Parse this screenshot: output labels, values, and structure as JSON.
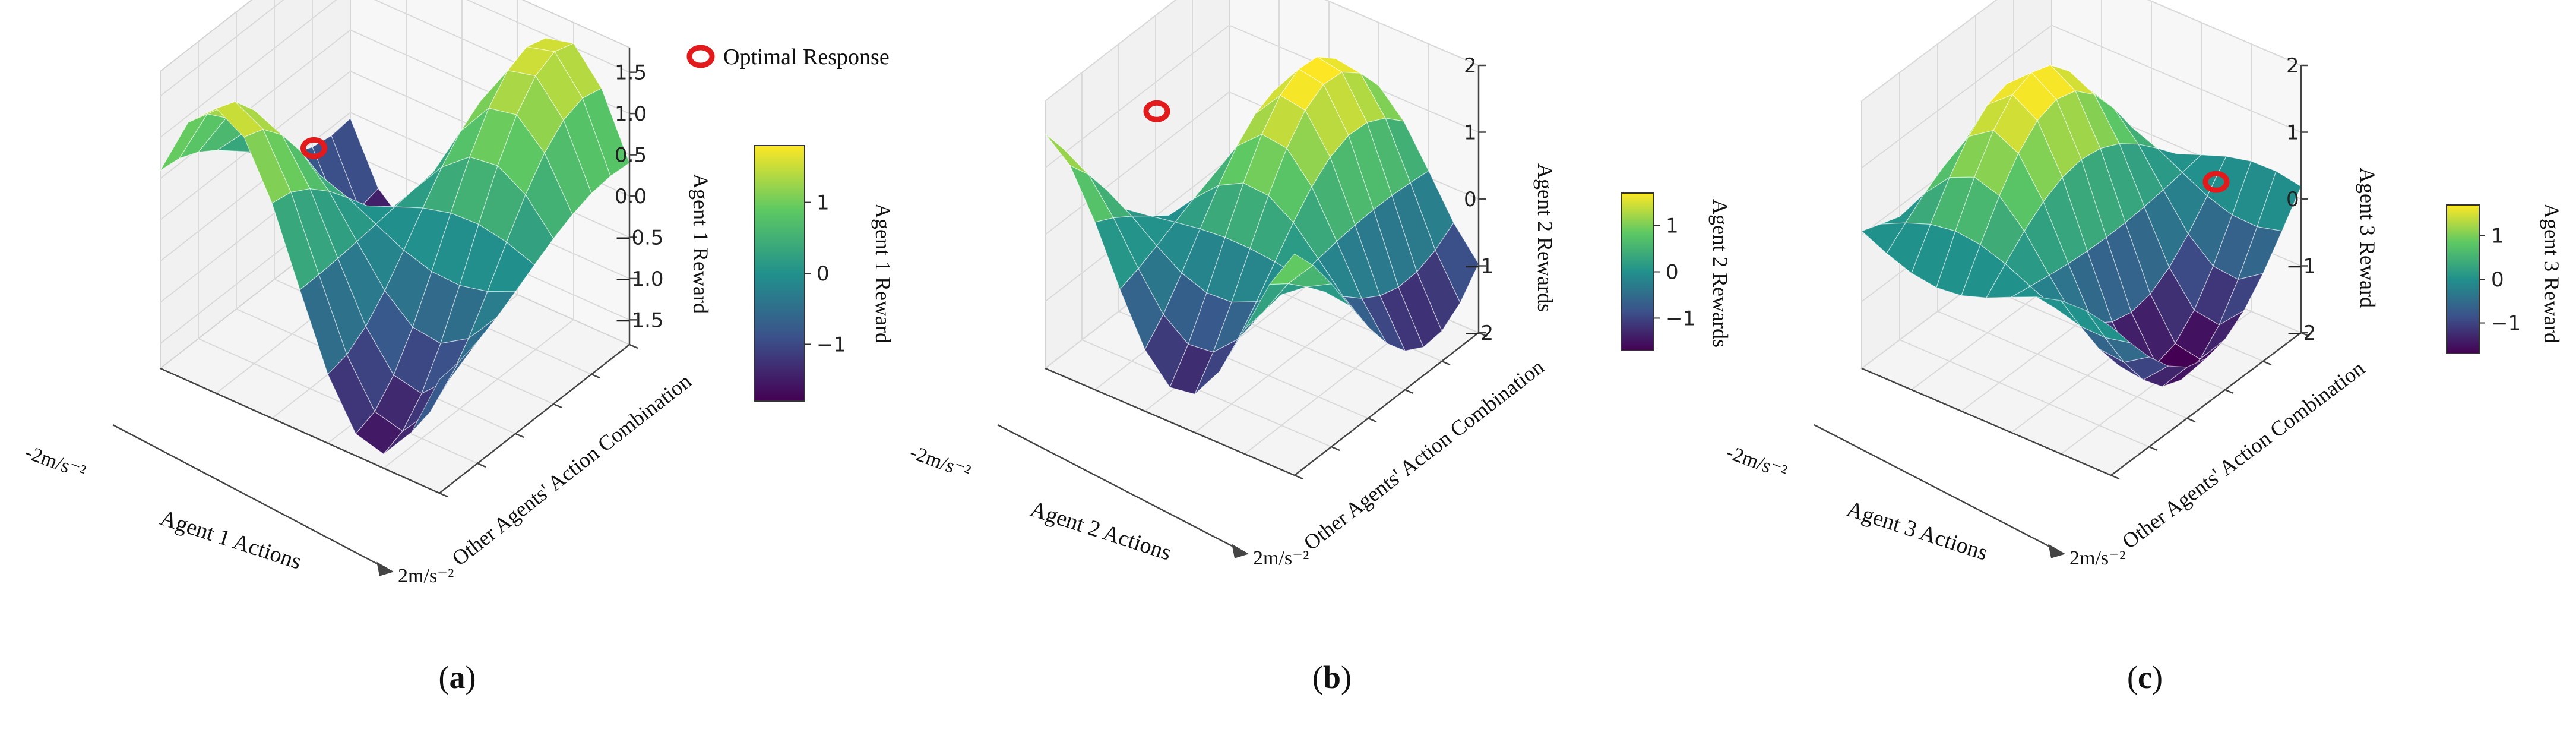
{
  "legend": {
    "label": "Optimal Response",
    "marker_color": "#e31a1c"
  },
  "colormap": [
    "#440154",
    "#3b528b",
    "#21918c",
    "#5ec962",
    "#fde725"
  ],
  "chart_data": [
    {
      "type": "surface",
      "panel_label": "(a)",
      "panel_letter": "a",
      "xlabel": "Agent 1 Actions",
      "ylabel": "Other Agents' Action Combination",
      "zlabel": "Agent 1 Reward",
      "x_range_labels": [
        "-2m/s⁻²",
        "2m/s⁻²"
      ],
      "zlim": [
        -1.8,
        1.8
      ],
      "zticks": [
        "1.5",
        "1.0",
        "0.5",
        "0.0",
        "−0.5",
        "−1.0",
        "−1.5"
      ],
      "zticks_values": [
        1.5,
        1.0,
        0.5,
        0.0,
        -0.5,
        -1.0,
        -1.5
      ],
      "colorbar": {
        "label": "Agent 1 Reward",
        "range": [
          -1.8,
          1.8
        ],
        "ticks": [
          "1",
          "0",
          "−1"
        ],
        "ticks_values": [
          1,
          0,
          -1
        ]
      },
      "surface": {
        "phase_x": 0.0,
        "phase_y": 0.0
      },
      "optimal_response": {
        "x": 0.55,
        "y": 0.0,
        "z": 1.7
      }
    },
    {
      "type": "surface",
      "panel_label": "(b)",
      "panel_letter": "b",
      "xlabel": "Agent 2 Actions",
      "ylabel": "Other Agents' Action Combination",
      "zlabel": "Agent 2 Rewards",
      "x_range_labels": [
        "-2m/s⁻²",
        "2m/s⁻²"
      ],
      "zlim": [
        -2,
        2
      ],
      "zticks": [
        "2",
        "1",
        "0",
        "−1",
        "−2"
      ],
      "zticks_values": [
        2,
        1,
        0,
        -1,
        -2
      ],
      "colorbar": {
        "label": "Agent 2 Rewards",
        "range": [
          -1.7,
          1.7
        ],
        "ticks": [
          "1",
          "0",
          "−1"
        ],
        "ticks_values": [
          1,
          0,
          -1
        ]
      },
      "surface": {
        "phase_x": 1.3,
        "phase_y": 0.6
      },
      "optimal_response": {
        "x": 0.3,
        "y": 0.2,
        "z": 1.9
      }
    },
    {
      "type": "surface",
      "panel_label": "(c)",
      "panel_letter": "c",
      "xlabel": "Agent 3 Actions",
      "ylabel": "Other Agents' Action Combination",
      "zlabel": "Agent 3 Reward",
      "x_range_labels": [
        "-2m/s⁻²",
        "2m/s⁻²"
      ],
      "zlim": [
        -2,
        2
      ],
      "zticks": [
        "2",
        "1",
        "0",
        "−1",
        "−2"
      ],
      "zticks_values": [
        2,
        1,
        0,
        -1,
        -2
      ],
      "colorbar": {
        "label": "Agent 3 Reward",
        "range": [
          -1.7,
          1.7
        ],
        "ticks": [
          "1",
          "0",
          "−1"
        ],
        "ticks_values": [
          1,
          0,
          -1
        ]
      },
      "surface": {
        "phase_x": 2.6,
        "phase_y": 1.4
      },
      "optimal_response": {
        "x": 0.85,
        "y": 0.75,
        "z": 0.55
      }
    }
  ]
}
